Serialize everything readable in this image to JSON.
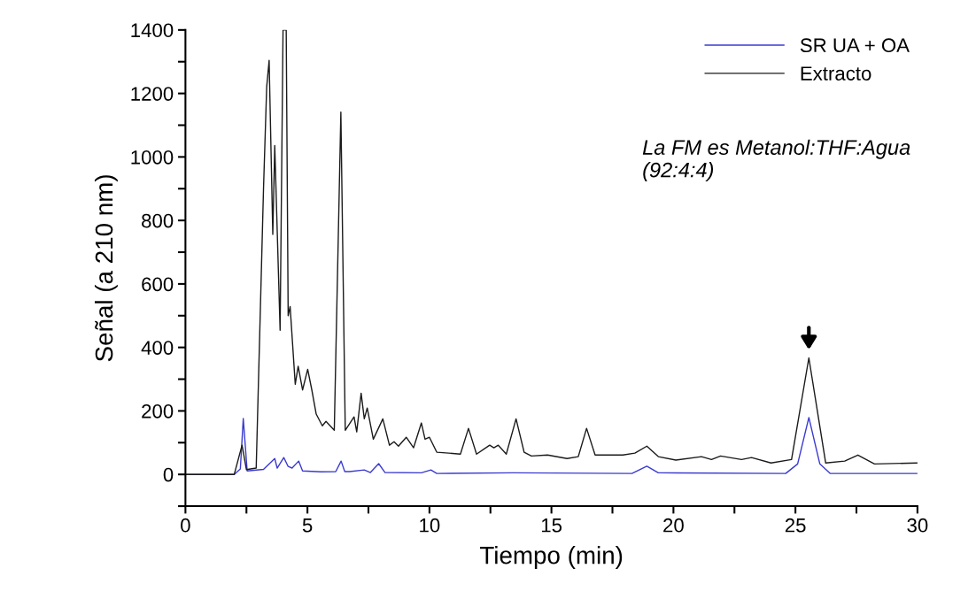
{
  "chart_data": {
    "type": "line",
    "xlabel": "Tiempo (min)",
    "ylabel": "Señal (a 210 nm)",
    "xlim": [
      0,
      30
    ],
    "ylim": [
      -100,
      1400
    ],
    "xticks": [
      0,
      {
        "value": 2.5,
        "label": null
      },
      5,
      {
        "value": 7.5,
        "label": null
      },
      10,
      {
        "value": 12.5,
        "label": null
      },
      15,
      {
        "value": 17.5,
        "label": null
      },
      20,
      {
        "value": 22.5,
        "label": null
      },
      25,
      {
        "value": 27.5,
        "label": null
      },
      30
    ],
    "yticks": [
      {
        "value": -100,
        "label": null
      },
      0,
      {
        "value": 100,
        "label": null
      },
      200,
      {
        "value": 300,
        "label": null
      },
      400,
      {
        "value": 500,
        "label": null
      },
      600,
      {
        "value": 700,
        "label": null
      },
      800,
      {
        "value": 900,
        "label": null
      },
      1000,
      {
        "value": 1100,
        "label": null
      },
      1200,
      {
        "value": 1300,
        "label": null
      },
      1400
    ],
    "grid": false,
    "legend": "top right",
    "line_style": "solid",
    "marker": "none",
    "annotations": [
      "La FM es Metanol:THF:Agua\n(92:4:4)"
    ],
    "series": [
      {
        "name": "SR UA + OA",
        "color": "#3a3ad0",
        "x": [
          0,
          2.0,
          2.25,
          2.37,
          2.53,
          3.2,
          3.66,
          3.76,
          4.03,
          4.21,
          4.37,
          4.64,
          4.8,
          5.55,
          6.16,
          6.38,
          6.53,
          6.73,
          7.33,
          7.58,
          7.92,
          8.18,
          9.67,
          10.06,
          10.3,
          13.45,
          18.3,
          18.91,
          19.38,
          24.6,
          25.09,
          25.55,
          26.0,
          26.42,
          30
        ],
        "values": [
          0,
          0,
          17,
          176,
          11,
          16,
          50,
          20,
          53,
          25,
          20,
          42,
          11,
          8,
          9,
          42,
          9,
          9,
          14,
          6,
          34,
          6,
          5,
          14,
          3,
          5,
          3,
          26,
          5,
          3,
          33,
          179,
          33,
          3,
          3
        ]
      },
      {
        "name": "Extracto",
        "color": "#1a1a1a",
        "x": [
          0,
          2.0,
          2.32,
          2.5,
          2.9,
          3.2,
          3.33,
          3.43,
          3.58,
          3.66,
          3.88,
          4.0,
          4.13,
          4.21,
          4.29,
          4.5,
          4.62,
          4.8,
          5.01,
          5.18,
          5.36,
          5.61,
          5.76,
          6.1,
          6.37,
          6.55,
          6.91,
          7.02,
          7.2,
          7.33,
          7.45,
          7.7,
          8.09,
          8.36,
          8.55,
          8.73,
          9.05,
          9.35,
          9.67,
          9.82,
          10.0,
          10.3,
          11.27,
          11.6,
          11.93,
          12.47,
          12.64,
          12.82,
          13.15,
          13.55,
          13.88,
          14.18,
          14.84,
          15.64,
          16.1,
          16.44,
          16.79,
          17.93,
          18.42,
          18.91,
          19.38,
          20.1,
          21.15,
          21.56,
          21.93,
          22.79,
          23.2,
          24.0,
          24.84,
          25.55,
          26.24,
          27.02,
          27.56,
          28.24,
          30
        ],
        "values": [
          0,
          0,
          92,
          15,
          20,
          900,
          1221,
          1304,
          756,
          1036,
          454,
          1400,
          1400,
          500,
          529,
          284,
          341,
          266,
          331,
          266,
          190,
          153,
          167,
          139,
          1141,
          139,
          181,
          134,
          256,
          175,
          209,
          111,
          175,
          92,
          103,
          89,
          117,
          84,
          162,
          111,
          117,
          70,
          64,
          145,
          64,
          92,
          84,
          92,
          64,
          175,
          70,
          58,
          61,
          50,
          56,
          145,
          61,
          61,
          67,
          89,
          56,
          45,
          56,
          47,
          58,
          47,
          53,
          36,
          47,
          367,
          36,
          42,
          61,
          33,
          36
        ]
      }
    ]
  }
}
